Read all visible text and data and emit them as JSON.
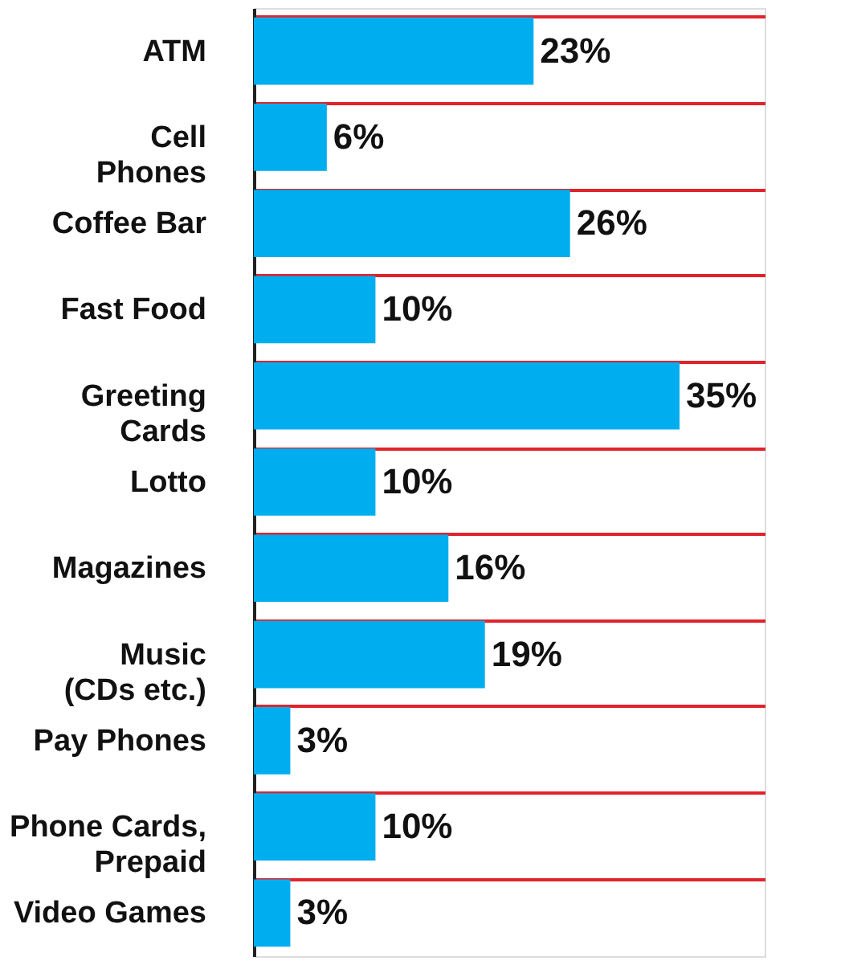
{
  "chart_data": {
    "type": "bar",
    "orientation": "horizontal",
    "categories": [
      "ATM",
      "Cell\nPhones",
      "Coffee Bar",
      "Fast Food",
      "Greeting\nCards",
      "Lotto",
      "Magazines",
      "Music\n(CDs etc.)",
      "Pay Phones",
      "Phone Cards,\nPrepaid",
      "Video Games"
    ],
    "values": [
      23,
      6,
      26,
      10,
      35,
      10,
      16,
      19,
      3,
      10,
      3
    ],
    "value_labels": [
      "23%",
      "6%",
      "26%",
      "10%",
      "35%",
      "10%",
      "16%",
      "19%",
      "3%",
      "10%",
      "3%"
    ],
    "color": "#00aeef",
    "grid": "y",
    "tick_labels": "y"
  }
}
